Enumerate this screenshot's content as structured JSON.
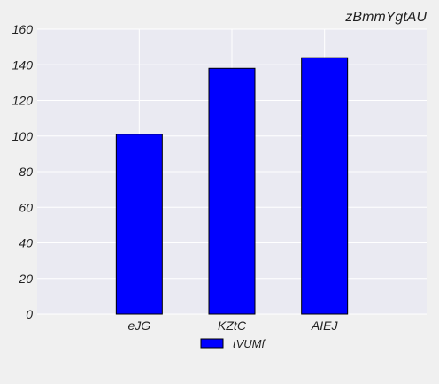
{
  "chart_data": {
    "type": "bar",
    "title": "zBmmYgtAU",
    "categories": [
      "eJG",
      "KZtC",
      "AIEJ"
    ],
    "series": [
      {
        "name": "tVUMf",
        "values": [
          101,
          138,
          144
        ],
        "color": "#0000ff"
      }
    ],
    "ylim": [
      0,
      160
    ],
    "yticks": [
      0,
      20,
      40,
      60,
      80,
      100,
      120,
      140,
      160
    ],
    "grid": true,
    "legend_position": "bottom-center",
    "plot_background": "#eaeaf2",
    "page_background": "#f0f0f0"
  }
}
